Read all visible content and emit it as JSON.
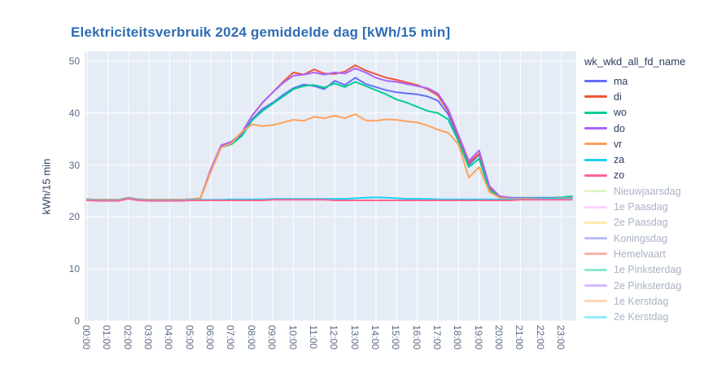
{
  "title": {
    "text": "Elektriciteitsverbruik 2024 gemiddelde dag [kWh/15 min]",
    "color": "#2e6cb3"
  },
  "y_axis": {
    "title": "kWh/15 min",
    "ticks": [
      0,
      10,
      20,
      30,
      40,
      50
    ],
    "range": [
      0,
      51.9
    ]
  },
  "x_axis": {
    "tick_labels": [
      "00:00",
      "01:00",
      "02:00",
      "03:00",
      "04:00",
      "05:00",
      "06:00",
      "07:00",
      "08:00",
      "09:00",
      "10:00",
      "11:00",
      "12:00",
      "13:00",
      "14:00",
      "15:00",
      "16:00",
      "17:00",
      "18:00",
      "19:00",
      "20:00",
      "21:00",
      "22:00",
      "23:00"
    ]
  },
  "legend": {
    "title": "wk_wkd_all_fd_name"
  },
  "colors": {
    "plot_bg": "#E5ECF6",
    "grid": "#FFFFFF",
    "tick_text": "#5a6a84",
    "text_dark": "#2a3f5f",
    "muted_text": "#a9b3c4"
  },
  "chart_data": {
    "type": "line",
    "title": "Elektriciteitsverbruik 2024 gemiddelde dag [kWh/15 min]",
    "xlabel": "",
    "ylabel": "kWh/15 min",
    "ylim": [
      0,
      51.9
    ],
    "grid": true,
    "legend_position": "right",
    "legend_title": "wk_wkd_all_fd_name",
    "x_unit": "time of day, 30-min samples",
    "x": [
      "00:00",
      "00:30",
      "01:00",
      "01:30",
      "02:00",
      "02:30",
      "03:00",
      "03:30",
      "04:00",
      "04:30",
      "05:00",
      "05:30",
      "06:00",
      "06:30",
      "07:00",
      "07:30",
      "08:00",
      "08:30",
      "09:00",
      "09:30",
      "10:00",
      "10:30",
      "11:00",
      "11:30",
      "12:00",
      "12:30",
      "13:00",
      "13:30",
      "14:00",
      "14:30",
      "15:00",
      "15:30",
      "16:00",
      "16:30",
      "17:00",
      "17:30",
      "18:00",
      "18:30",
      "19:00",
      "19:30",
      "20:00",
      "20:30",
      "21:00",
      "21:30",
      "22:00",
      "22:30",
      "23:00",
      "23:30"
    ],
    "series": [
      {
        "name": "ma",
        "color": "#636EFA",
        "visible": true,
        "values": [
          23.4,
          23.3,
          23.3,
          23.3,
          23.7,
          23.4,
          23.3,
          23.3,
          23.3,
          23.3,
          23.4,
          23.6,
          29.0,
          33.5,
          34.2,
          35.8,
          38.8,
          40.8,
          42.0,
          43.5,
          44.8,
          45.5,
          45.2,
          44.6,
          46.2,
          45.4,
          46.8,
          45.6,
          45.0,
          44.4,
          44.0,
          43.8,
          43.6,
          43.2,
          42.4,
          39.8,
          35.0,
          30.0,
          32.0,
          25.5,
          23.9,
          23.7,
          23.6,
          23.6,
          23.6,
          23.6,
          23.6,
          23.7
        ]
      },
      {
        "name": "di",
        "color": "#EF553B",
        "visible": true,
        "values": [
          23.4,
          23.3,
          23.3,
          23.3,
          23.7,
          23.4,
          23.3,
          23.3,
          23.3,
          23.3,
          23.4,
          23.6,
          29.2,
          33.8,
          34.5,
          36.2,
          39.5,
          42.0,
          44.0,
          46.0,
          47.8,
          47.4,
          48.4,
          47.6,
          47.5,
          48.0,
          49.2,
          48.2,
          47.5,
          46.8,
          46.4,
          45.9,
          45.4,
          44.6,
          43.4,
          40.4,
          35.5,
          30.4,
          32.2,
          25.7,
          24.0,
          23.7,
          23.6,
          23.6,
          23.6,
          23.6,
          23.7,
          23.7
        ]
      },
      {
        "name": "wo",
        "color": "#00CC96",
        "visible": true,
        "values": [
          23.4,
          23.3,
          23.3,
          23.3,
          23.7,
          23.4,
          23.3,
          23.3,
          23.3,
          23.3,
          23.4,
          23.6,
          28.8,
          33.4,
          34.0,
          35.6,
          38.6,
          40.4,
          41.8,
          43.2,
          44.6,
          45.2,
          45.4,
          44.9,
          45.7,
          45.0,
          46.0,
          45.2,
          44.4,
          43.6,
          42.6,
          42.0,
          41.2,
          40.4,
          40.0,
          38.8,
          34.6,
          29.6,
          31.2,
          25.2,
          23.9,
          23.7,
          23.7,
          23.7,
          23.7,
          23.7,
          23.8,
          24.0
        ]
      },
      {
        "name": "do",
        "color": "#AB63FA",
        "visible": true,
        "values": [
          23.4,
          23.3,
          23.3,
          23.3,
          23.7,
          23.4,
          23.3,
          23.3,
          23.3,
          23.3,
          23.4,
          23.6,
          29.2,
          33.8,
          34.5,
          36.2,
          39.5,
          42.0,
          44.0,
          45.8,
          47.2,
          47.4,
          47.8,
          47.4,
          47.8,
          47.6,
          48.6,
          47.8,
          46.8,
          46.2,
          46.0,
          45.6,
          45.2,
          44.8,
          43.8,
          40.8,
          35.8,
          30.8,
          32.8,
          26.0,
          24.0,
          23.7,
          23.6,
          23.6,
          23.6,
          23.6,
          23.6,
          23.7
        ]
      },
      {
        "name": "vr",
        "color": "#FFA15A",
        "visible": true,
        "values": [
          23.4,
          23.3,
          23.3,
          23.3,
          23.7,
          23.4,
          23.3,
          23.3,
          23.3,
          23.3,
          23.4,
          23.6,
          28.8,
          33.4,
          34.2,
          36.4,
          37.8,
          37.5,
          37.7,
          38.2,
          38.7,
          38.5,
          39.3,
          39.0,
          39.5,
          39.0,
          39.8,
          38.6,
          38.5,
          38.8,
          38.7,
          38.4,
          38.2,
          37.6,
          36.8,
          36.2,
          34.0,
          27.6,
          29.6,
          24.8,
          23.7,
          23.5,
          23.5,
          23.5,
          23.5,
          23.5,
          23.6,
          23.6
        ]
      },
      {
        "name": "za",
        "color": "#19D3F3",
        "visible": true,
        "values": [
          23.3,
          23.2,
          23.2,
          23.2,
          23.6,
          23.3,
          23.2,
          23.2,
          23.2,
          23.2,
          23.3,
          23.3,
          23.3,
          23.3,
          23.4,
          23.4,
          23.4,
          23.4,
          23.5,
          23.5,
          23.5,
          23.5,
          23.5,
          23.5,
          23.5,
          23.5,
          23.6,
          23.7,
          23.8,
          23.7,
          23.6,
          23.5,
          23.5,
          23.5,
          23.4,
          23.4,
          23.4,
          23.4,
          23.4,
          23.4,
          23.4,
          23.4,
          23.4,
          23.4,
          23.5,
          23.5,
          23.5,
          23.5
        ]
      },
      {
        "name": "zo",
        "color": "#FF6692",
        "visible": true,
        "values": [
          23.2,
          23.1,
          23.1,
          23.1,
          23.5,
          23.2,
          23.1,
          23.1,
          23.1,
          23.1,
          23.2,
          23.2,
          23.2,
          23.2,
          23.2,
          23.2,
          23.2,
          23.2,
          23.3,
          23.3,
          23.3,
          23.3,
          23.3,
          23.3,
          23.2,
          23.2,
          23.2,
          23.2,
          23.2,
          23.2,
          23.2,
          23.2,
          23.2,
          23.2,
          23.2,
          23.2,
          23.2,
          23.2,
          23.2,
          23.2,
          23.2,
          23.2,
          23.3,
          23.3,
          23.3,
          23.3,
          23.3,
          23.3
        ]
      },
      {
        "name": "Nieuwjaarsdag",
        "color": "#B6E880",
        "visible": false,
        "values": []
      },
      {
        "name": "1e Paasdag",
        "color": "#FF97FF",
        "visible": false,
        "values": []
      },
      {
        "name": "2e Paasdag",
        "color": "#FECB52",
        "visible": false,
        "values": []
      },
      {
        "name": "Koningsdag",
        "color": "#636EFA",
        "visible": false,
        "values": []
      },
      {
        "name": "Hemelvaart",
        "color": "#EF553B",
        "visible": false,
        "values": []
      },
      {
        "name": "1e Pinksterdag",
        "color": "#00CC96",
        "visible": false,
        "values": []
      },
      {
        "name": "2e Pinksterdag",
        "color": "#AB63FA",
        "visible": false,
        "values": []
      },
      {
        "name": "1e Kerstdag",
        "color": "#FFA15A",
        "visible": false,
        "values": []
      },
      {
        "name": "2e Kerstdag",
        "color": "#19D3F3",
        "visible": false,
        "values": []
      }
    ]
  }
}
